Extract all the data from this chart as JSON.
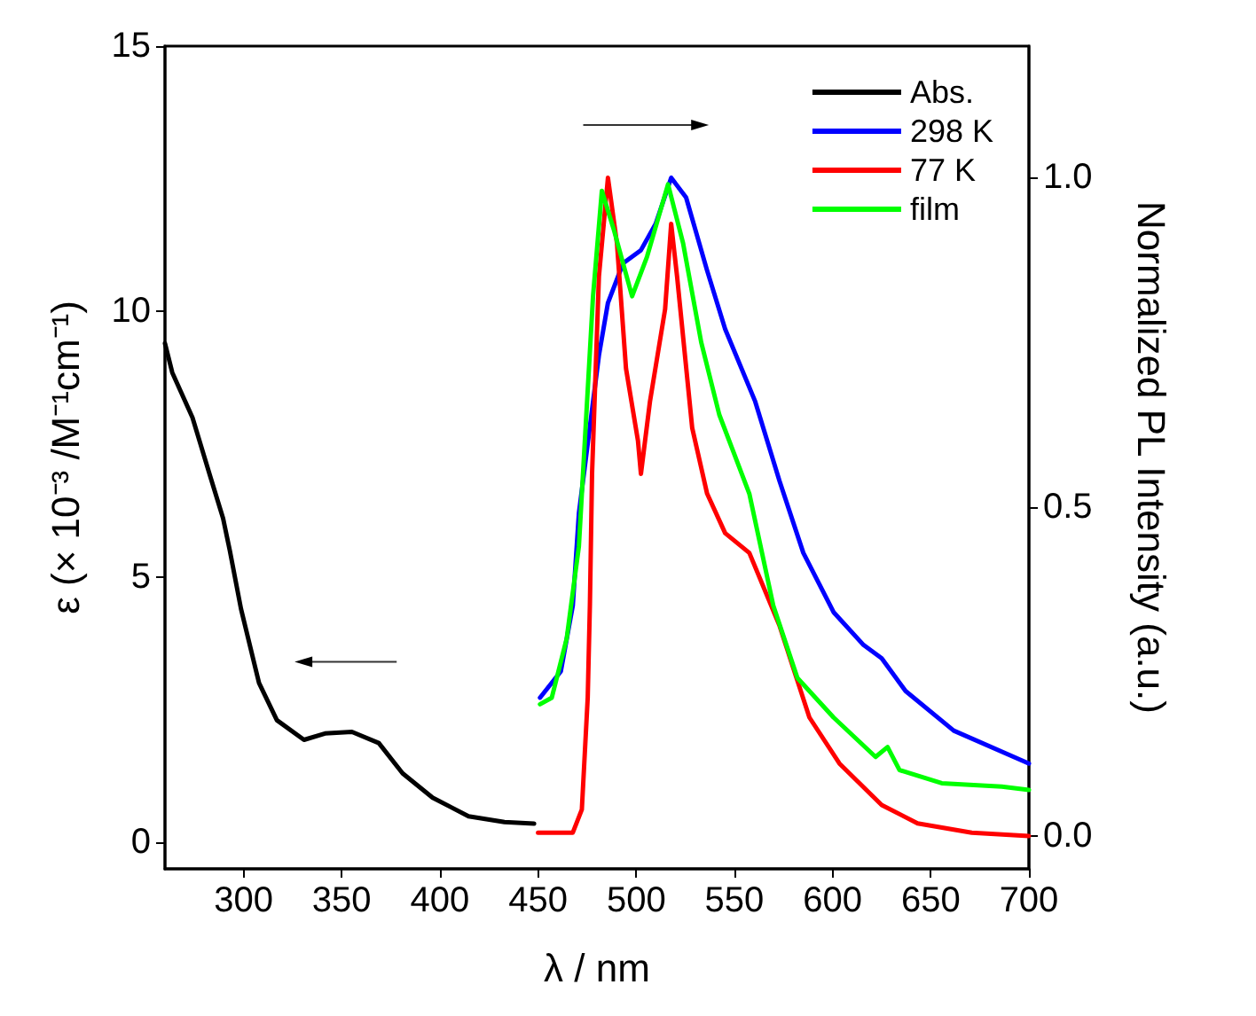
{
  "chart_data": {
    "type": "line",
    "xlabel": "λ / nm",
    "ylabel": "ε (× 10⁻³ /M⁻¹cm⁻¹)",
    "y2label": "Normalized PL Intensity (a.u.)",
    "xlim": [
      260,
      700
    ],
    "xticks": [
      300,
      350,
      400,
      450,
      500,
      550,
      600,
      650,
      700
    ],
    "ylim": [
      -0.5,
      15
    ],
    "yticks": [
      0,
      5,
      10,
      15
    ],
    "y2lim": [
      -0.05,
      1.2
    ],
    "y2ticks": [
      {
        "value": 0,
        "label": "0.0"
      },
      {
        "value": 0.5,
        "label": "0.5"
      },
      {
        "value": 1,
        "label": "1.0"
      }
    ],
    "grid": false,
    "legend": "top right",
    "marker": "none",
    "line_style": "solid",
    "series": [
      {
        "name": "Abs.",
        "color": "#000000",
        "x": [
          260,
          263.7,
          274,
          283,
          289.6,
          293,
          298.7,
          307.9,
          317,
          330.8,
          341.5,
          355.2,
          368.9,
          381,
          396.3,
          414.6,
          432.9,
          448
        ],
        "values": [
          9.4,
          8.85,
          8.0,
          6.9,
          6.1,
          5.5,
          4.4,
          3.0,
          2.3,
          1.93,
          2.05,
          2.08,
          1.87,
          1.3,
          0.84,
          0.49,
          0.38,
          0.35
        ]
      },
      {
        "name": "298 K",
        "color": "#0000ff",
        "axis": "y2",
        "x": [
          451,
          461.6,
          467.7,
          470.8,
          481,
          485.6,
          493.3,
          502.4,
          509.9,
          517.8,
          525.4,
          536,
          545.3,
          560.6,
          572.9,
          585.1,
          600.5,
          615.8,
          625,
          637.2,
          661.7,
          700
        ],
        "values": [
          0.21,
          0.25,
          0.35,
          0.49,
          0.73,
          0.81,
          0.87,
          0.89,
          0.93,
          1.0,
          0.97,
          0.86,
          0.77,
          0.66,
          0.54,
          0.43,
          0.34,
          0.29,
          0.27,
          0.22,
          0.16,
          0.11
        ]
      },
      {
        "name": "77 K",
        "color": "#ff0000",
        "axis": "y2",
        "x": [
          450,
          467.7,
          472.3,
          475.3,
          476.4,
          477.5,
          481,
          485.6,
          490.2,
          494.8,
          500.9,
          502.4,
          507,
          514.7,
          517.8,
          520.8,
          528.5,
          536.1,
          545.3,
          557.6,
          572.9,
          588.2,
          603.5,
          625,
          643.3,
          670.9,
          700
        ],
        "values": [
          0.005,
          0.005,
          0.04,
          0.21,
          0.35,
          0.55,
          0.85,
          1.0,
          0.9,
          0.71,
          0.6,
          0.55,
          0.66,
          0.8,
          0.93,
          0.85,
          0.62,
          0.52,
          0.46,
          0.43,
          0.32,
          0.18,
          0.11,
          0.047,
          0.019,
          0.005,
          0.0
        ]
      },
      {
        "name": "film",
        "color": "#00ff00",
        "axis": "y2",
        "x": [
          451,
          457,
          464.6,
          470.8,
          478,
          482.5,
          488.7,
          497.9,
          505.5,
          516.2,
          523.9,
          533.1,
          542.3,
          557.6,
          569.8,
          582.1,
          600.5,
          621.9,
          628,
          634.1,
          655.6,
          686.2,
          700
        ],
        "values": [
          0.2,
          0.21,
          0.3,
          0.44,
          0.82,
          0.98,
          0.92,
          0.82,
          0.88,
          0.99,
          0.9,
          0.75,
          0.64,
          0.52,
          0.35,
          0.24,
          0.18,
          0.12,
          0.135,
          0.1,
          0.08,
          0.075,
          0.07
        ]
      }
    ]
  }
}
